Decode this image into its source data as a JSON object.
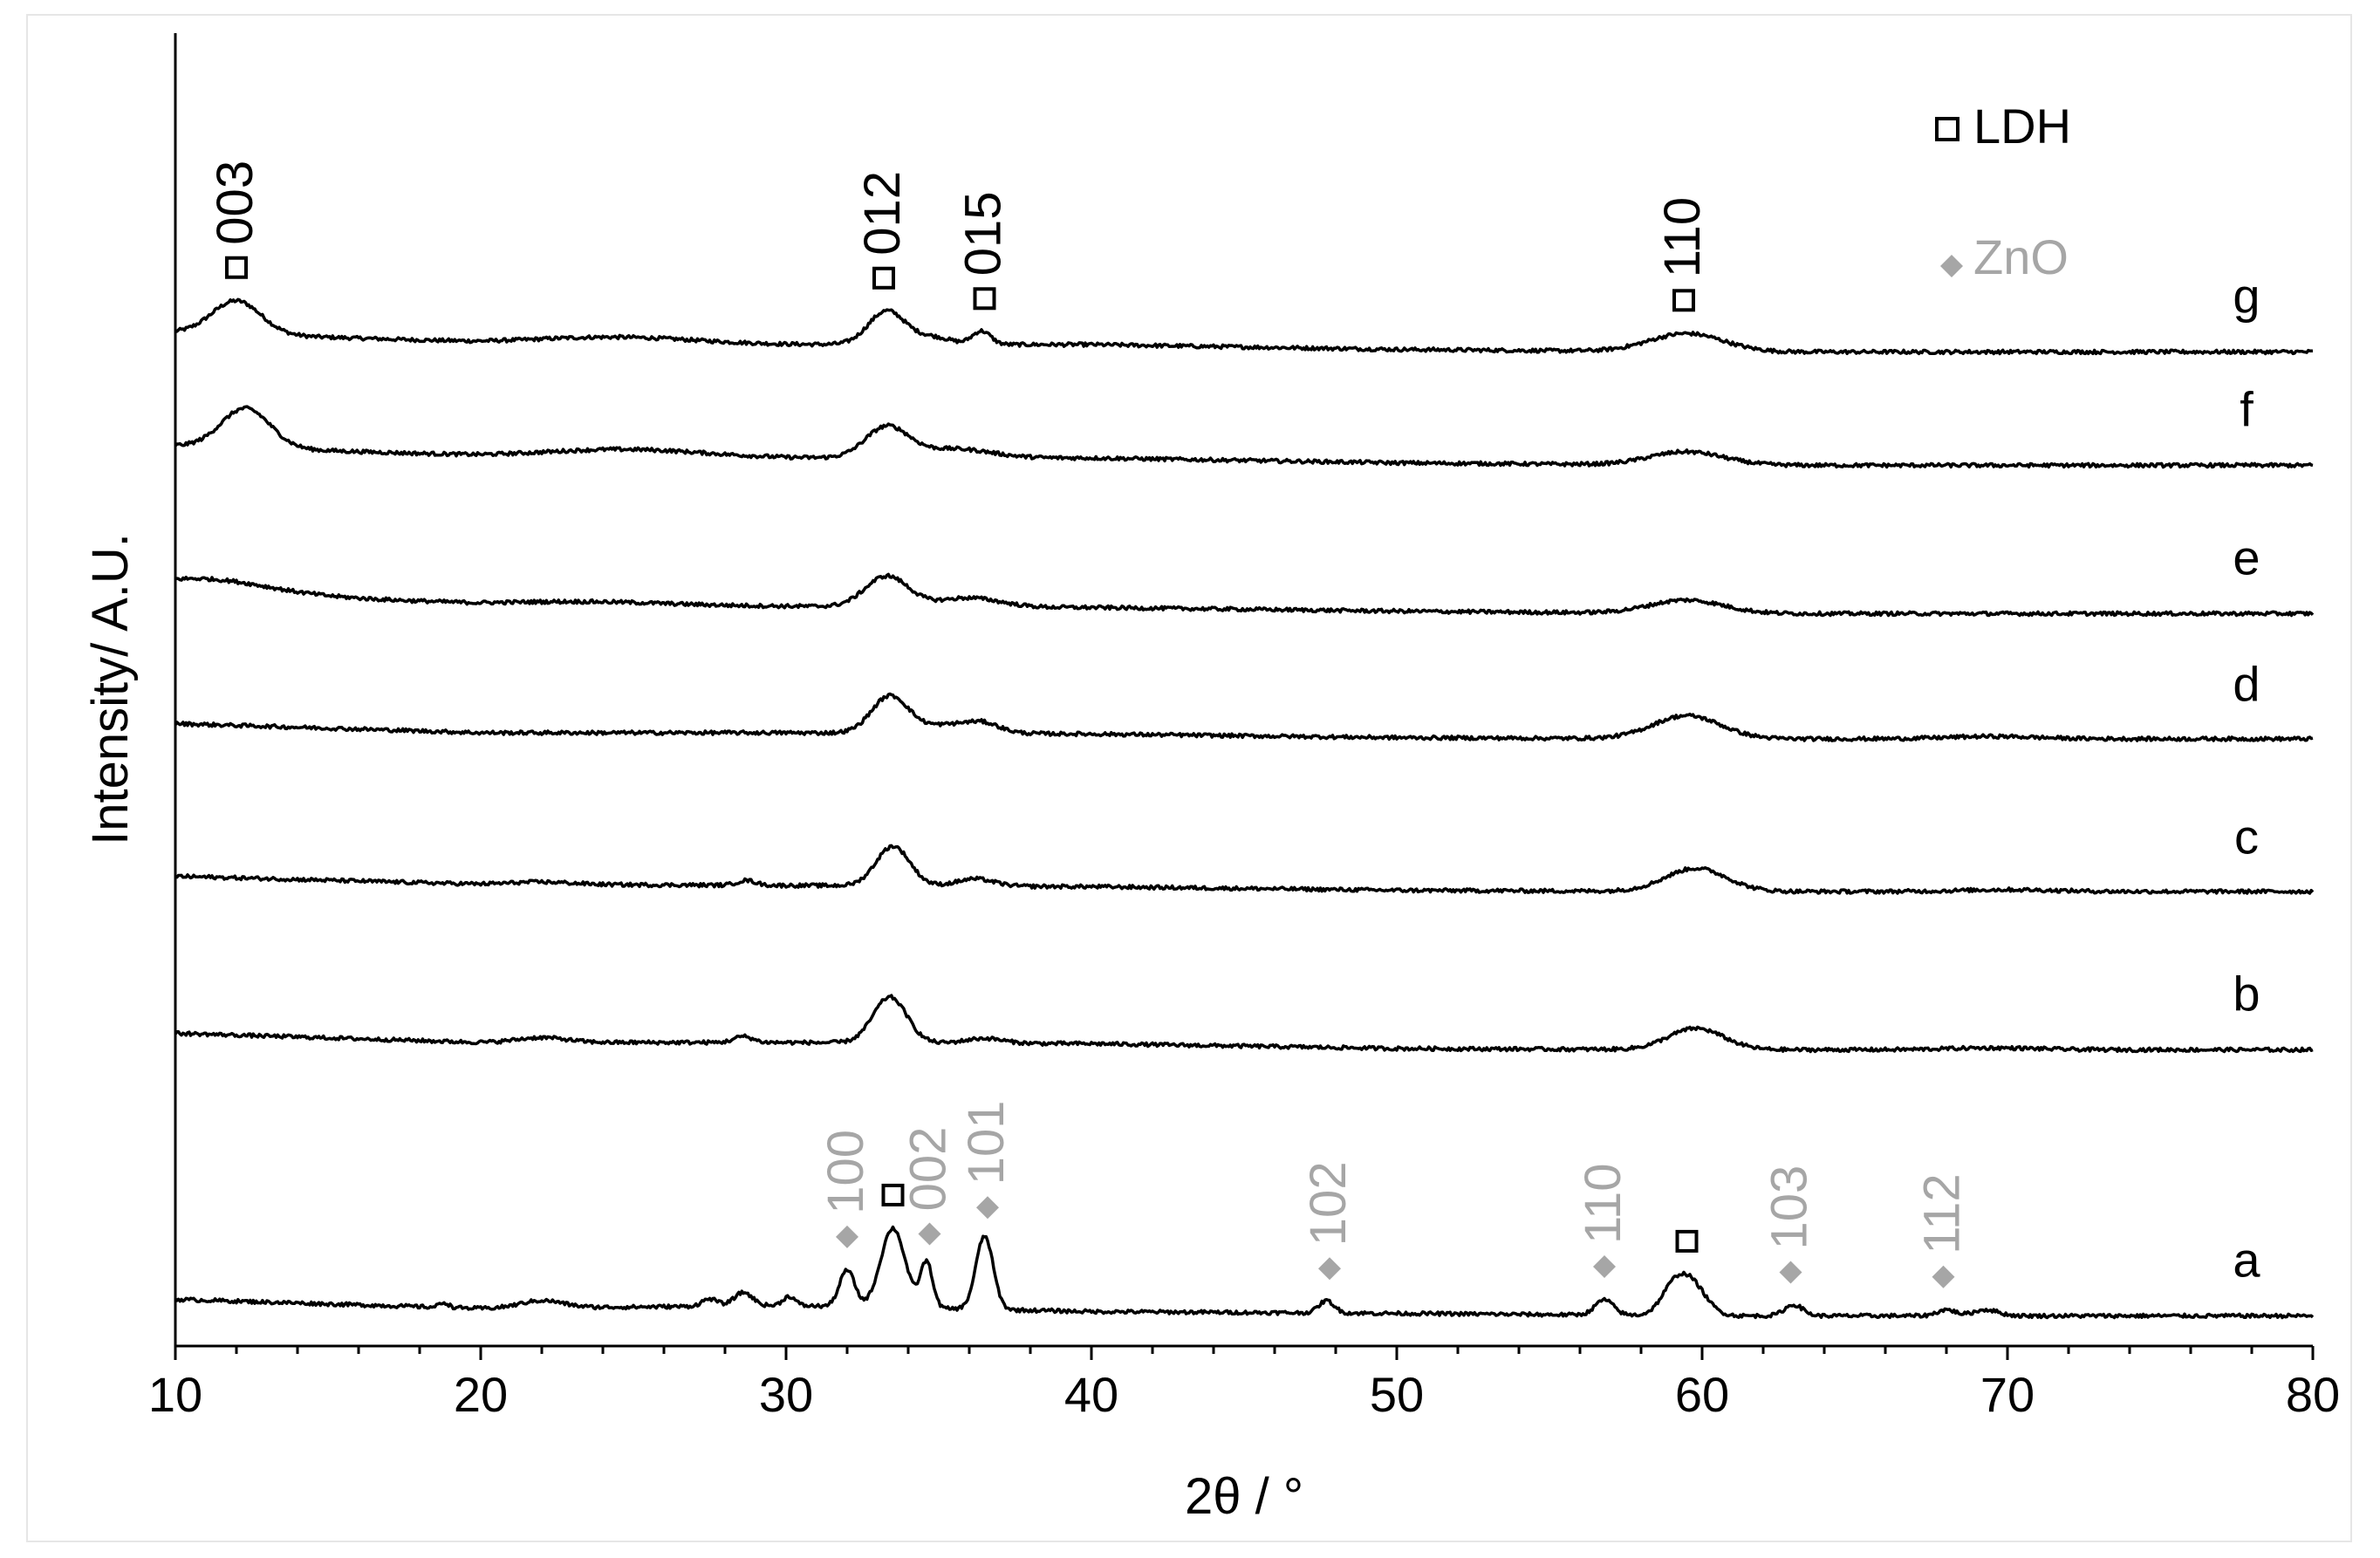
{
  "chart_data": {
    "type": "line",
    "title": "",
    "xlabel": "2θ / °",
    "ylabel": "Intensity/ A.U.",
    "xlim": [
      10,
      80
    ],
    "x_ticks": [
      10,
      20,
      30,
      40,
      50,
      60,
      70,
      80
    ],
    "x_minor_tick_step": 2,
    "y_ticks": [],
    "grid": false,
    "legend_position": "top-right",
    "colors": {
      "ldh": "#000000",
      "zno": "#a6a6a6",
      "trace": "#000000"
    },
    "legend": [
      {
        "label": "LDH",
        "marker": "open-square",
        "color": "#000000"
      },
      {
        "label": "ZnO",
        "marker": "filled-diamond",
        "color": "#a6a6a6"
      }
    ],
    "series": [
      {
        "name": "g",
        "baseline": [
          [
            10,
            0.2
          ],
          [
            20,
            0.04
          ],
          [
            30,
            0.0
          ],
          [
            40,
            0.0
          ],
          [
            50,
            -0.08
          ],
          [
            60,
            -0.12
          ],
          [
            70,
            -0.12
          ],
          [
            80,
            -0.12
          ]
        ],
        "peaks": [
          [
            12.0,
            0.55,
            0.8
          ],
          [
            24.5,
            0.1,
            2.5
          ],
          [
            33.3,
            0.55,
            0.6
          ],
          [
            34.8,
            0.12,
            0.6
          ],
          [
            36.4,
            0.22,
            0.3
          ],
          [
            59.5,
            0.3,
            1.2
          ]
        ]
      },
      {
        "name": "f",
        "baseline": [
          [
            10,
            0.2
          ],
          [
            20,
            0.04
          ],
          [
            30,
            0.0
          ],
          [
            40,
            0.0
          ],
          [
            50,
            -0.08
          ],
          [
            60,
            -0.12
          ],
          [
            70,
            -0.12
          ],
          [
            80,
            -0.12
          ]
        ],
        "peaks": [
          [
            12.3,
            0.65,
            0.8
          ],
          [
            24.8,
            0.12,
            2.5
          ],
          [
            33.3,
            0.5,
            0.7
          ],
          [
            35.5,
            0.15,
            1.2
          ],
          [
            59.5,
            0.22,
            1.2
          ]
        ]
      },
      {
        "name": "e",
        "baseline": [
          [
            10,
            0.25
          ],
          [
            20,
            0.04
          ],
          [
            30,
            0.0
          ],
          [
            40,
            -0.02
          ],
          [
            50,
            -0.08
          ],
          [
            60,
            -0.12
          ],
          [
            70,
            -0.12
          ],
          [
            80,
            -0.12
          ]
        ],
        "peaks": [
          [
            11.0,
            0.22,
            2.0
          ],
          [
            23.5,
            0.05,
            2.5
          ],
          [
            33.3,
            0.5,
            0.7
          ],
          [
            36.0,
            0.15,
            1.0
          ],
          [
            59.5,
            0.22,
            1.2
          ]
        ]
      },
      {
        "name": "d",
        "baseline": [
          [
            10,
            0.15
          ],
          [
            20,
            0.0
          ],
          [
            30,
            0.0
          ],
          [
            40,
            -0.02
          ],
          [
            50,
            -0.08
          ],
          [
            60,
            -0.1
          ],
          [
            70,
            -0.1
          ],
          [
            80,
            -0.1
          ]
        ],
        "peaks": [
          [
            33.4,
            0.6,
            0.6
          ],
          [
            35.5,
            0.15,
            1.0
          ],
          [
            36.5,
            0.1,
            0.5
          ],
          [
            59.5,
            0.38,
            1.1
          ],
          [
            69.5,
            0.04,
            1.5
          ]
        ]
      },
      {
        "name": "c",
        "baseline": [
          [
            10,
            0.15
          ],
          [
            20,
            0.02
          ],
          [
            30,
            0.0
          ],
          [
            40,
            -0.02
          ],
          [
            50,
            -0.08
          ],
          [
            60,
            -0.1
          ],
          [
            70,
            -0.1
          ],
          [
            80,
            -0.1
          ]
        ],
        "peaks": [
          [
            22.0,
            0.04,
            1.0
          ],
          [
            28.7,
            0.08,
            0.3
          ],
          [
            33.5,
            0.65,
            0.55
          ],
          [
            36.2,
            0.12,
            0.6
          ],
          [
            59.8,
            0.38,
            1.0
          ],
          [
            70.0,
            0.03,
            1.5
          ]
        ]
      },
      {
        "name": "b",
        "baseline": [
          [
            10,
            0.15
          ],
          [
            20,
            0.0
          ],
          [
            30,
            0.0
          ],
          [
            40,
            -0.02
          ],
          [
            50,
            -0.1
          ],
          [
            60,
            -0.12
          ],
          [
            70,
            -0.12
          ],
          [
            80,
            -0.12
          ]
        ],
        "peaks": [
          [
            22.0,
            0.08,
            0.8
          ],
          [
            28.6,
            0.1,
            0.3
          ],
          [
            33.4,
            0.75,
            0.55
          ],
          [
            36.5,
            0.08,
            0.6
          ],
          [
            59.8,
            0.35,
            0.9
          ],
          [
            69.5,
            0.03,
            1.5
          ]
        ]
      },
      {
        "name": "a",
        "baseline": [
          [
            10,
            0.15
          ],
          [
            20,
            0.0
          ],
          [
            30,
            0.05
          ],
          [
            40,
            -0.05
          ],
          [
            50,
            -0.08
          ],
          [
            60,
            -0.12
          ],
          [
            70,
            -0.12
          ],
          [
            80,
            -0.12
          ]
        ],
        "peaks": [
          [
            18.8,
            0.08,
            0.15
          ],
          [
            22.0,
            0.12,
            0.7
          ],
          [
            27.5,
            0.12,
            0.25
          ],
          [
            28.6,
            0.22,
            0.3
          ],
          [
            30.1,
            0.15,
            0.2
          ],
          [
            32.0,
            0.6,
            0.25
          ],
          [
            33.5,
            1.3,
            0.4
          ],
          [
            34.6,
            0.75,
            0.2
          ],
          [
            36.5,
            1.2,
            0.28
          ],
          [
            47.7,
            0.2,
            0.25
          ],
          [
            56.8,
            0.25,
            0.3
          ],
          [
            59.0,
            0.3,
            0.4
          ],
          [
            59.6,
            0.55,
            0.5
          ],
          [
            63.0,
            0.18,
            0.3
          ],
          [
            68.0,
            0.1,
            0.3
          ],
          [
            69.3,
            0.1,
            0.4
          ]
        ]
      }
    ],
    "annotations": [
      {
        "series": "g",
        "x": 12.0,
        "phase": "LDH",
        "label": "003"
      },
      {
        "series": "g",
        "x": 33.2,
        "phase": "LDH",
        "label": "012"
      },
      {
        "series": "g",
        "x": 36.5,
        "phase": "LDH",
        "label": "015"
      },
      {
        "series": "g",
        "x": 59.4,
        "phase": "LDH",
        "label": "110"
      },
      {
        "series": "a",
        "x": 32.0,
        "phase": "ZnO",
        "label": "100"
      },
      {
        "series": "a",
        "x": 33.5,
        "phase": "LDH",
        "label": ""
      },
      {
        "series": "a",
        "x": 34.7,
        "phase": "ZnO",
        "label": "002"
      },
      {
        "series": "a",
        "x": 36.6,
        "phase": "ZnO",
        "label": "101"
      },
      {
        "series": "a",
        "x": 47.8,
        "phase": "ZnO",
        "label": "102"
      },
      {
        "series": "a",
        "x": 56.8,
        "phase": "ZnO",
        "label": "110"
      },
      {
        "series": "a",
        "x": 59.5,
        "phase": "LDH",
        "label": ""
      },
      {
        "series": "a",
        "x": 62.9,
        "phase": "ZnO",
        "label": "103"
      },
      {
        "series": "a",
        "x": 67.9,
        "phase": "ZnO",
        "label": "112"
      }
    ]
  }
}
